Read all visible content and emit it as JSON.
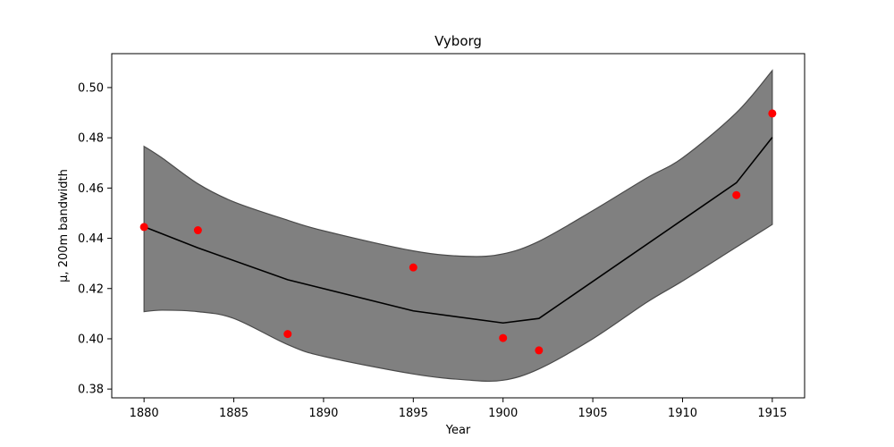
{
  "chart_data": {
    "type": "line",
    "title": "Vyborg",
    "xlabel": "Year",
    "ylabel": "μ, 200m bandwidth",
    "xlim": [
      1878.2,
      1916.8
    ],
    "ylim": [
      0.3765,
      0.5135
    ],
    "xticks": [
      1880,
      1885,
      1890,
      1895,
      1900,
      1905,
      1910,
      1915
    ],
    "xtick_labels": [
      "1880",
      "1885",
      "1890",
      "1895",
      "1900",
      "1905",
      "1910",
      "1915"
    ],
    "yticks": [
      0.38,
      0.4,
      0.42,
      0.44,
      0.46,
      0.48,
      0.5
    ],
    "ytick_labels": [
      "0.38",
      "0.40",
      "0.42",
      "0.44",
      "0.46",
      "0.48",
      "0.50"
    ],
    "grid": false,
    "legend": "none",
    "series": [
      {
        "kind": "points",
        "color": "#ff0000",
        "x": [
          1880,
          1883,
          1888,
          1895,
          1900,
          1902,
          1913,
          1915
        ],
        "y": [
          0.4445,
          0.4432,
          0.4019,
          0.4284,
          0.4003,
          0.3954,
          0.4572,
          0.4897
        ]
      },
      {
        "kind": "line",
        "color": "#000000",
        "x": [
          1880,
          1883,
          1888,
          1895,
          1900,
          1902,
          1913,
          1915
        ],
        "y": [
          0.4446,
          0.4362,
          0.4235,
          0.4111,
          0.4063,
          0.4081,
          0.4621,
          0.4802
        ]
      },
      {
        "kind": "band",
        "color": "#808080",
        "x": [
          1880,
          1881,
          1883,
          1885,
          1888,
          1890,
          1895,
          1898,
          1900,
          1902,
          1905,
          1908,
          1910,
          1913,
          1915
        ],
        "upper": [
          0.4766,
          0.472,
          0.4617,
          0.4545,
          0.4472,
          0.443,
          0.435,
          0.4328,
          0.4338,
          0.4388,
          0.451,
          0.464,
          0.472,
          0.49,
          0.5068
        ],
        "lower": [
          0.4108,
          0.4114,
          0.4108,
          0.4081,
          0.3977,
          0.393,
          0.386,
          0.3836,
          0.3835,
          0.388,
          0.4,
          0.4145,
          0.423,
          0.4365,
          0.4455
        ]
      }
    ]
  }
}
